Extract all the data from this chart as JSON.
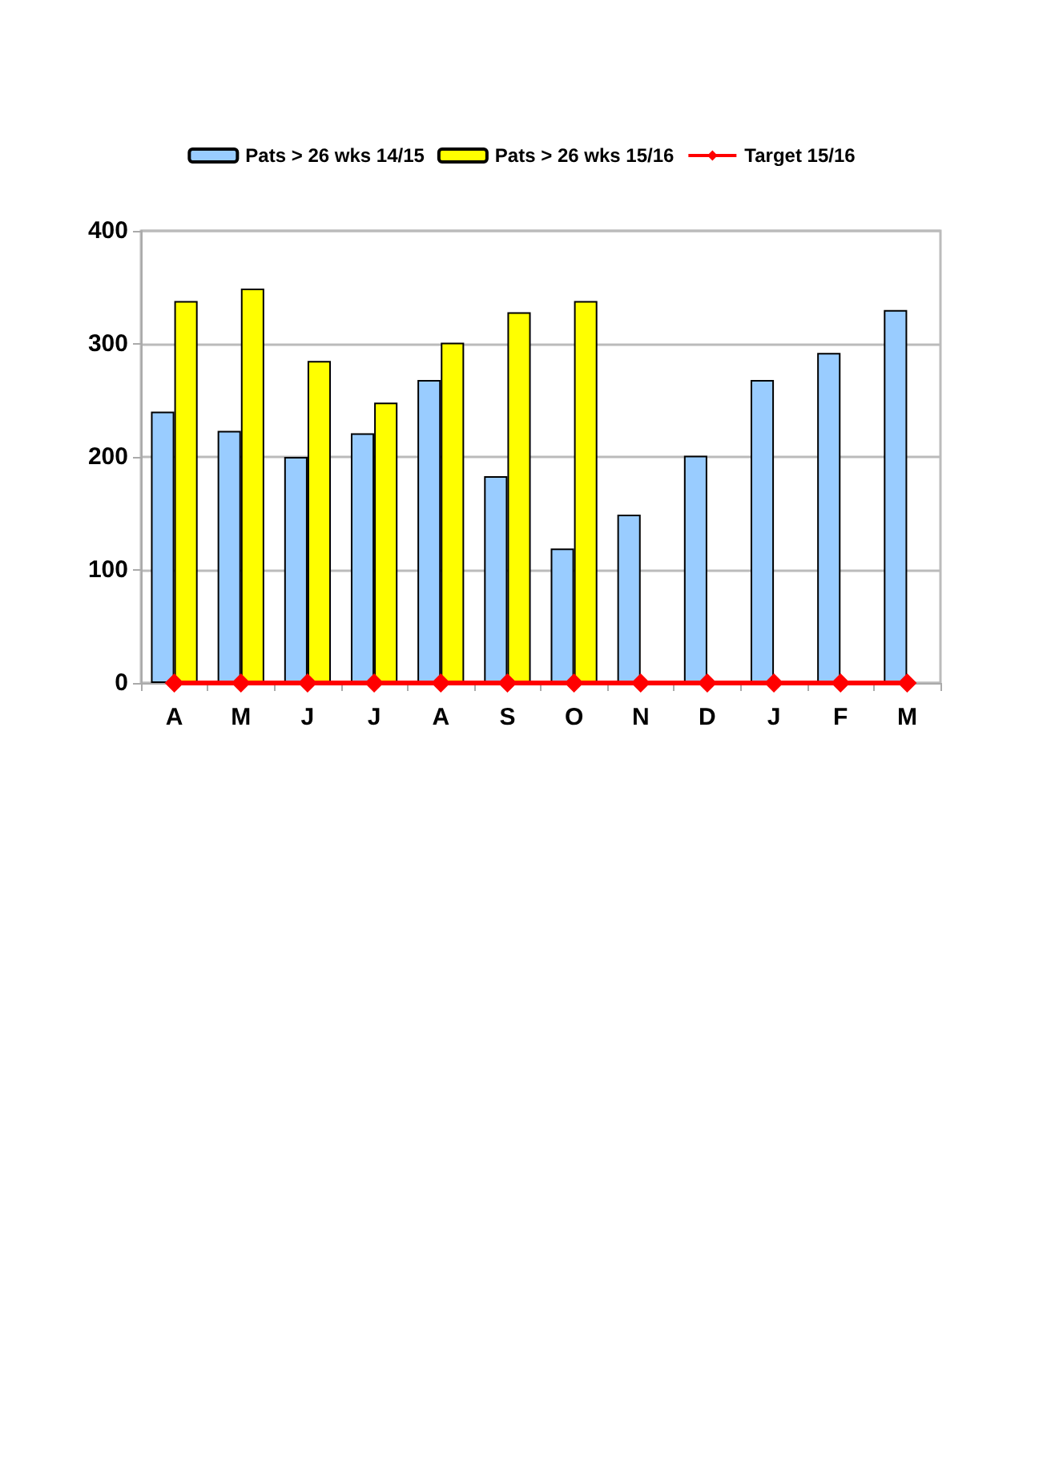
{
  "chart_data": {
    "type": "bar",
    "categories": [
      "A",
      "M",
      "J",
      "J",
      "A",
      "S",
      "O",
      "N",
      "D",
      "J",
      "F",
      "M"
    ],
    "series": [
      {
        "name": "Pats > 26 wks 14/15",
        "color": "#99ccff",
        "values": [
          240,
          223,
          200,
          221,
          268,
          183,
          119,
          149,
          201,
          268,
          292,
          330
        ]
      },
      {
        "name": "Pats > 26 wks 15/16",
        "color": "#ffff00",
        "values": [
          338,
          349,
          285,
          248,
          301,
          328,
          338,
          null,
          null,
          null,
          null,
          null
        ]
      },
      {
        "name": "Target 15/16",
        "type": "line",
        "color": "#ff0000",
        "marker": "diamond",
        "values": [
          0,
          0,
          0,
          0,
          0,
          0,
          0,
          0,
          0,
          0,
          0,
          0
        ]
      }
    ],
    "ylim": [
      0,
      400
    ],
    "yticks": [
      0,
      100,
      200,
      300,
      400
    ],
    "grid": "y",
    "legend": "top"
  }
}
